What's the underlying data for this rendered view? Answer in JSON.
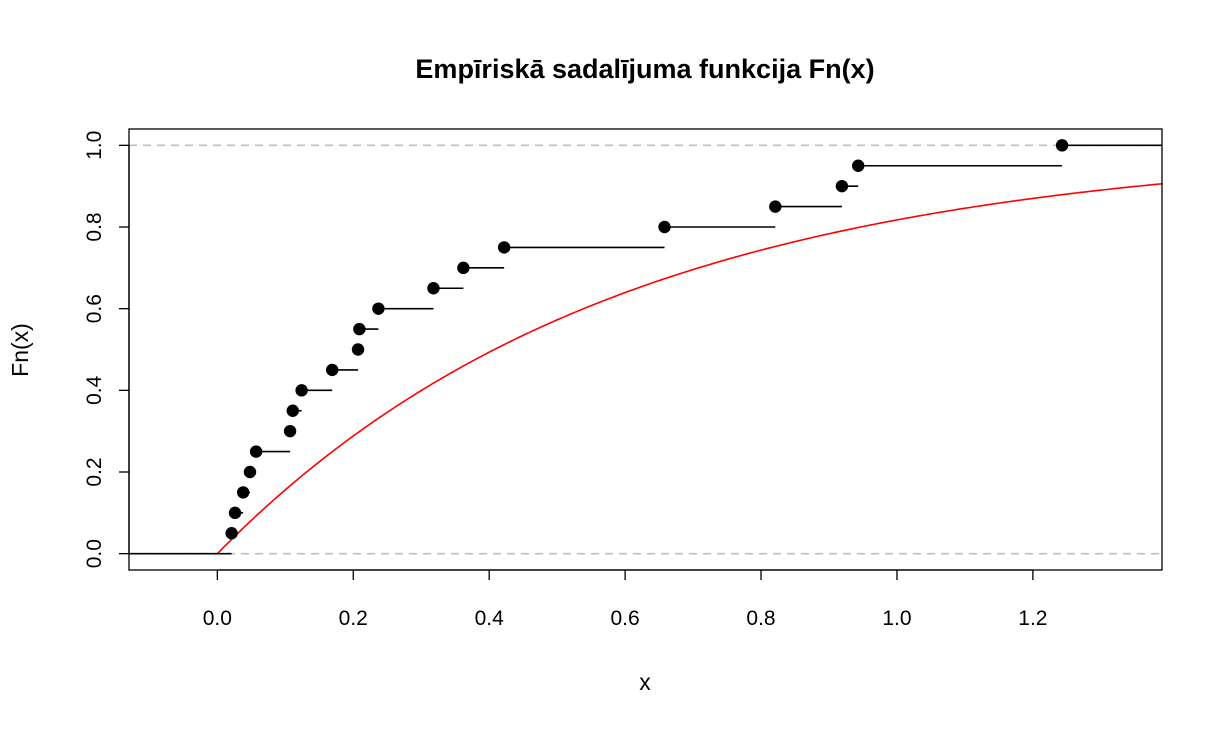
{
  "chart_data": {
    "type": "step",
    "title": "Empīriskā sadalījuma funkcija Fn(x)",
    "xlabel": "x",
    "ylabel": "Fn(x)",
    "xlim": [
      -0.13,
      1.39
    ],
    "ylim": [
      -0.04,
      1.04
    ],
    "x_ticks": [
      "0.0",
      "0.2",
      "0.4",
      "0.6",
      "0.8",
      "1.0",
      "1.2"
    ],
    "y_ticks": [
      "0.0",
      "0.2",
      "0.4",
      "0.6",
      "0.8",
      "1.0"
    ],
    "reference_lines": [
      0,
      1
    ],
    "ecdf_points": [
      {
        "x": 0.021,
        "y": 0.05
      },
      {
        "x": 0.026,
        "y": 0.1
      },
      {
        "x": 0.038,
        "y": 0.15
      },
      {
        "x": 0.048,
        "y": 0.2
      },
      {
        "x": 0.057,
        "y": 0.25
      },
      {
        "x": 0.107,
        "y": 0.3
      },
      {
        "x": 0.111,
        "y": 0.35
      },
      {
        "x": 0.124,
        "y": 0.4
      },
      {
        "x": 0.169,
        "y": 0.45
      },
      {
        "x": 0.207,
        "y": 0.5
      },
      {
        "x": 0.209,
        "y": 0.55
      },
      {
        "x": 0.237,
        "y": 0.6
      },
      {
        "x": 0.318,
        "y": 0.65
      },
      {
        "x": 0.362,
        "y": 0.7
      },
      {
        "x": 0.422,
        "y": 0.75
      },
      {
        "x": 0.658,
        "y": 0.8
      },
      {
        "x": 0.821,
        "y": 0.85
      },
      {
        "x": 0.919,
        "y": 0.9
      },
      {
        "x": 0.943,
        "y": 0.95
      },
      {
        "x": 1.243,
        "y": 1.0
      }
    ],
    "theoretical_curve": {
      "name": "1 - exp(-1.7x)",
      "rate": 1.7,
      "color": "#ff0000"
    },
    "colors": {
      "points": "#000000",
      "steps": "#000000",
      "reference": "#bebebe",
      "curve": "#ff0000"
    }
  }
}
